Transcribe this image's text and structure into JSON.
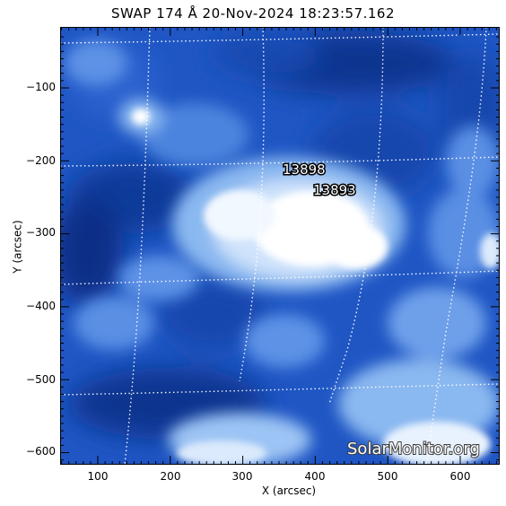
{
  "title": "SWAP 174 Å 20-Nov-2024 18:23:57.162",
  "x_axis_label": "X (arcsec)",
  "y_axis_label": "Y (arcsec)",
  "x_ticks": [
    "100",
    "200",
    "300",
    "400",
    "500",
    "600"
  ],
  "y_ticks": [
    "−100",
    "−200",
    "−300",
    "−400",
    "−500",
    "−600"
  ],
  "regions": [
    {
      "label": "13898"
    },
    {
      "label": "13893"
    }
  ],
  "watermark": "SolarMonitor.org",
  "colors": {
    "dark_blue": "#0d3d9e",
    "mid_blue": "#2f6bd6",
    "light_blue": "#8ab8f0",
    "bright": "#ffffff",
    "grid": "#ffffff",
    "frame": "#000000"
  }
}
